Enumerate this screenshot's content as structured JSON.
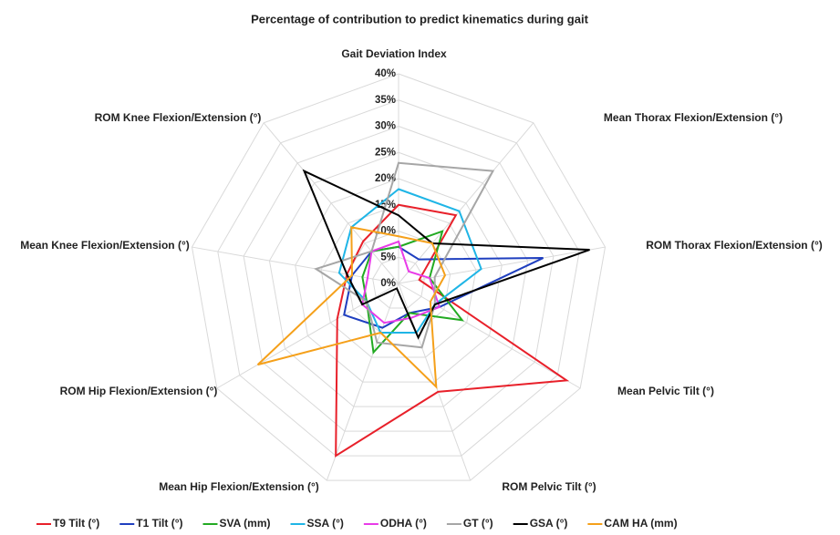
{
  "chart_data": {
    "type": "radar",
    "title": "Percentage of contribution to predict kinematics during gait",
    "categories": [
      "Gait Deviation Index",
      "Mean Thorax Flexion/Extension (°)",
      "ROM Thorax Flexion/Extension (°)",
      "Mean Pelvic Tilt (°)",
      "ROM Pelvic Tilt (°)",
      "Mean Hip Flexion/Extension (°)",
      "ROM Hip Flexion/Extension (°)",
      "Mean Knee Flexion/Extension (°)",
      "ROM Knee Flexion/Extension (°)"
    ],
    "series": [
      {
        "name": "T9 Tilt (°)",
        "color": "#e8202a",
        "values": [
          15,
          17,
          4,
          37,
          22,
          35,
          13.5,
          10,
          10.5
        ]
      },
      {
        "name": "T1 Tilt (°)",
        "color": "#1f3fbf",
        "values": [
          7,
          6,
          28,
          9,
          6,
          9,
          12,
          9,
          8
        ]
      },
      {
        "name": "SVA (mm)",
        "color": "#22aa22",
        "values": [
          7,
          13,
          6,
          14,
          6,
          14,
          7,
          7,
          8
        ]
      },
      {
        "name": "SSA (°)",
        "color": "#1fb5e6",
        "values": [
          18,
          18,
          16,
          8,
          10,
          10,
          7,
          11.5,
          14
        ]
      },
      {
        "name": "ODHA (°)",
        "color": "#e83be8",
        "values": [
          8,
          3,
          6,
          9,
          7,
          8,
          8,
          6,
          8
        ]
      },
      {
        "name": "GT (°)",
        "color": "#a6a6a6",
        "values": [
          23,
          28,
          7,
          8,
          13,
          12,
          7,
          16,
          8
        ]
      },
      {
        "name": "GSA (°)",
        "color": "#000000",
        "values": [
          13,
          10,
          37,
          8,
          11,
          1,
          8,
          10,
          28
        ]
      },
      {
        "name": "CAM HA (mm)",
        "color": "#f5a01a",
        "values": [
          9,
          10,
          9,
          7,
          21,
          10,
          31,
          9,
          14
        ]
      }
    ],
    "ylim": [
      0,
      40
    ],
    "yticks": [
      {
        "value": 0,
        "label": "0%"
      },
      {
        "value": 5,
        "label": "5%"
      },
      {
        "value": 10,
        "label": "10%"
      },
      {
        "value": 15,
        "label": "15%"
      },
      {
        "value": 20,
        "label": "20%"
      },
      {
        "value": 25,
        "label": "25%"
      },
      {
        "value": 30,
        "label": "30%"
      },
      {
        "value": 35,
        "label": "35%"
      },
      {
        "value": 40,
        "label": "40%"
      }
    ],
    "grid": true,
    "legend": "bottom"
  }
}
